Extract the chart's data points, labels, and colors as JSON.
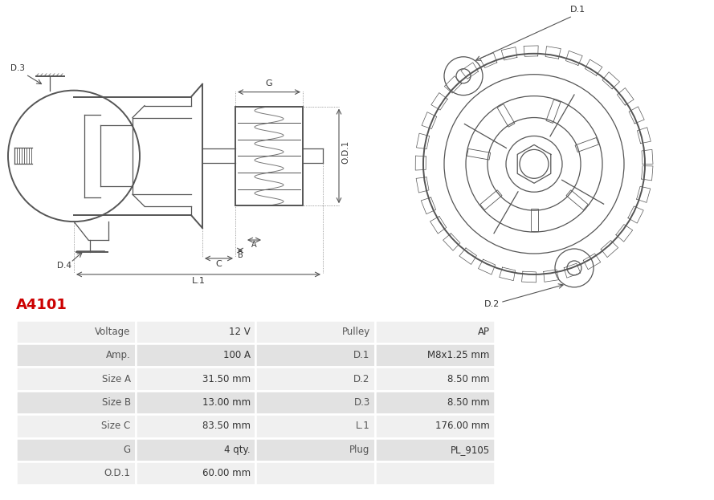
{
  "title": "A4101",
  "title_color": "#cc0000",
  "bg_color": "#ffffff",
  "table_row_bg_odd": "#f0f0f0",
  "table_row_bg_even": "#e2e2e2",
  "table_border_color": "#ffffff",
  "table_data": [
    [
      "Voltage",
      "12 V",
      "Pulley",
      "AP"
    ],
    [
      "Amp.",
      "100 A",
      "D.1",
      "M8x1.25 mm"
    ],
    [
      "Size A",
      "31.50 mm",
      "D.2",
      "8.50 mm"
    ],
    [
      "Size B",
      "13.00 mm",
      "D.3",
      "8.50 mm"
    ],
    [
      "Size C",
      "83.50 mm",
      "L.1",
      "176.00 mm"
    ],
    [
      "G",
      "4 qty.",
      "Plug",
      "PL_9105"
    ],
    [
      "O.D.1",
      "60.00 mm",
      "",
      ""
    ]
  ],
  "font_size_title": 13,
  "font_size_table": 8.5,
  "line_color": "#555555",
  "label_color": "#333333"
}
